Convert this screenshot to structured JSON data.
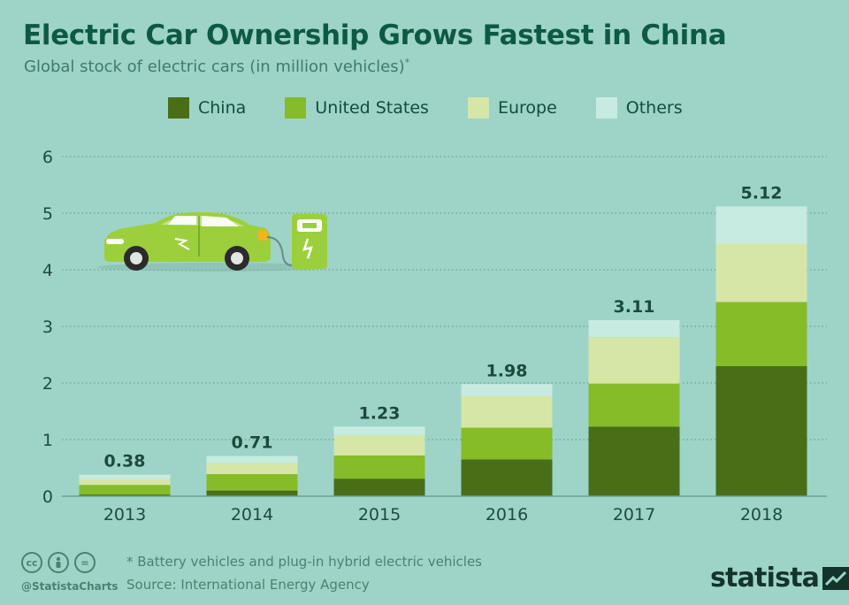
{
  "title": "Electric Car Ownership Grows Fastest in China",
  "subtitle": "Global stock of electric cars (in million vehicles)",
  "subtitle_mark": "*",
  "colors": {
    "background": "#9ed4c7",
    "china": "#4a6e17",
    "united_states": "#86bc27",
    "europe": "#d5e6a7",
    "others": "#c8ebe1"
  },
  "chart_data": {
    "type": "bar",
    "stacked": true,
    "categories": [
      "2013",
      "2014",
      "2015",
      "2016",
      "2017",
      "2018"
    ],
    "series": [
      {
        "name": "China",
        "values": [
          0.03,
          0.1,
          0.31,
          0.65,
          1.23,
          2.3
        ]
      },
      {
        "name": "United States",
        "values": [
          0.17,
          0.29,
          0.41,
          0.56,
          0.76,
          1.13
        ]
      },
      {
        "name": "Europe",
        "values": [
          0.1,
          0.2,
          0.36,
          0.56,
          0.82,
          1.03
        ]
      },
      {
        "name": "Others",
        "values": [
          0.08,
          0.12,
          0.15,
          0.21,
          0.3,
          0.66
        ]
      }
    ],
    "totals": [
      "0.38",
      "0.71",
      "1.23",
      "1.98",
      "3.11",
      "5.12"
    ],
    "ylim": [
      0,
      6
    ],
    "yticks": [
      "0",
      "1",
      "2",
      "3",
      "4",
      "5",
      "6"
    ],
    "grid": true,
    "legend_position": "top"
  },
  "footer": {
    "cc_icons": [
      "cc",
      "by",
      "="
    ],
    "handle": "@StatistaCharts",
    "note": "* Battery vehicles and plug-in hybrid electric vehicles",
    "source": "Source: International Energy Agency",
    "brand": "statista"
  }
}
